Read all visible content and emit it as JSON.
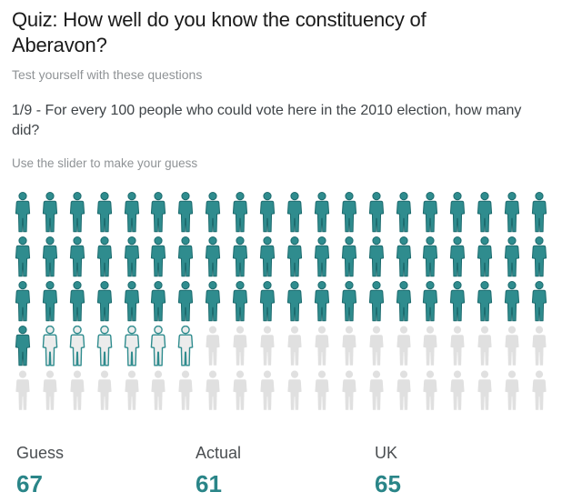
{
  "page": {
    "title": "Quiz: How well do you know the constituency of Aberavon?",
    "subtitle": "Test yourself with these questions",
    "question": "1/9 - For every 100 people who could vote here in the 2010 election, how many did?",
    "instruction": "Use the slider to make your guess"
  },
  "stats": [
    {
      "label": "Guess",
      "value": "67"
    },
    {
      "label": "Actual",
      "value": "61"
    },
    {
      "label": "UK",
      "value": "65"
    }
  ],
  "colors": {
    "icon_teal_fill": "#2f8c8e",
    "icon_teal_stroke": "#1d6b6e",
    "icon_outlined_fill": "#ececec",
    "icon_gray_fill": "#e0e0e0",
    "value_teal": "#2a8588",
    "label_gray": "#4a4e51"
  },
  "chart_data": {
    "type": "pictogram",
    "total_icons": 100,
    "grid": {
      "columns": 20,
      "rows": 5
    },
    "icon": "person",
    "segments": [
      {
        "state": "solid",
        "count": 61
      },
      {
        "state": "outlined",
        "count": 6
      },
      {
        "state": "gray",
        "count": 33
      }
    ],
    "values": {
      "guess": 67,
      "actual": 61,
      "uk": 65
    }
  }
}
